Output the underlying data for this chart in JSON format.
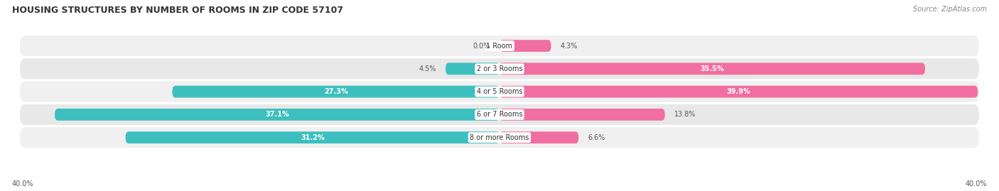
{
  "title": "HOUSING STRUCTURES BY NUMBER OF ROOMS IN ZIP CODE 57107",
  "source": "Source: ZipAtlas.com",
  "categories": [
    "1 Room",
    "2 or 3 Rooms",
    "4 or 5 Rooms",
    "6 or 7 Rooms",
    "8 or more Rooms"
  ],
  "owner_values": [
    0.0,
    4.5,
    27.3,
    37.1,
    31.2
  ],
  "renter_values": [
    4.3,
    35.5,
    39.9,
    13.8,
    6.6
  ],
  "owner_color": "#3DBFBF",
  "renter_color": "#F06EA0",
  "owner_color_light": "#7DD8D8",
  "renter_color_light": "#F5AACB",
  "row_bg_color_odd": "#F0F0F0",
  "row_bg_color_even": "#E8E8E8",
  "axis_limit": 40.0,
  "figsize": [
    14.06,
    2.69
  ],
  "dpi": 100,
  "bar_height": 0.52,
  "x_left_label": "40.0%",
  "x_right_label": "40.0%",
  "title_fontsize": 9,
  "source_fontsize": 7,
  "label_fontsize": 7,
  "category_fontsize": 7,
  "legend_fontsize": 7.5
}
